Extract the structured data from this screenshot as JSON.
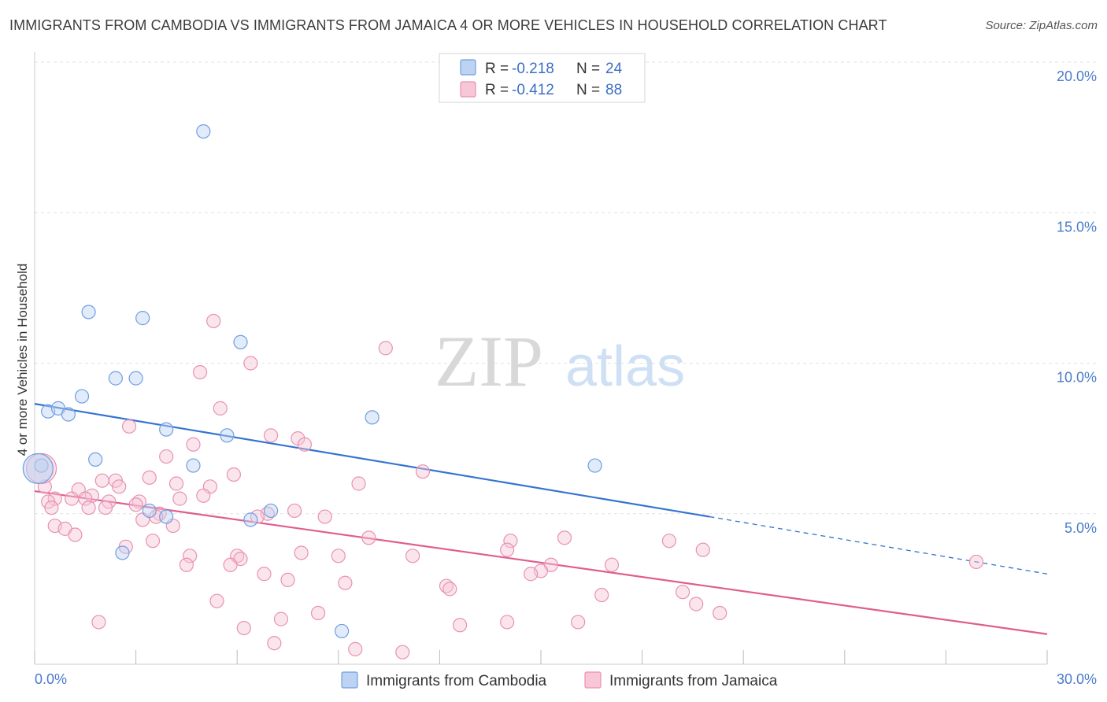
{
  "header": {
    "title": "IMMIGRANTS FROM CAMBODIA VS IMMIGRANTS FROM JAMAICA 4 OR MORE VEHICLES IN HOUSEHOLD CORRELATION CHART",
    "source": "Source: ZipAtlas.com"
  },
  "watermark": {
    "zip": "ZIP",
    "atlas": "atlas"
  },
  "legend": {
    "rows": [
      {
        "r_label": "R =",
        "r_value": "-0.218",
        "n_label": "N =",
        "n_value": "24"
      },
      {
        "r_label": "R =",
        "r_value": "-0.412",
        "n_label": "N =",
        "n_value": "88"
      }
    ]
  },
  "chart_data": {
    "type": "scatter",
    "title": "IMMIGRANTS FROM CAMBODIA VS IMMIGRANTS FROM JAMAICA 4 OR MORE VEHICLES IN HOUSEHOLD CORRELATION CHART",
    "xlabel": "",
    "ylabel": "4 or more Vehicles in Household",
    "xlim": [
      0,
      30
    ],
    "ylim": [
      0,
      20
    ],
    "x_tick_labels": [
      "0.0%",
      "30.0%"
    ],
    "y_ticks": [
      5,
      10,
      15,
      20
    ],
    "y_tick_labels": [
      "5.0%",
      "10.0%",
      "15.0%",
      "20.0%"
    ],
    "grid": true,
    "legend_position": "top-center",
    "series": [
      {
        "name": "Immigrants from Cambodia",
        "color": "#6f9fe0",
        "fill": "#bcd3f3",
        "trend_color": "#3373d1",
        "trend": {
          "x_start": 0,
          "y_start": 8.65,
          "x_solid_end": 20,
          "y_solid_end": 4.9,
          "x_end": 30,
          "y_end": 3.0
        },
        "points": [
          {
            "x": 5.0,
            "y": 17.7
          },
          {
            "x": 1.6,
            "y": 11.7
          },
          {
            "x": 3.2,
            "y": 11.5
          },
          {
            "x": 6.1,
            "y": 10.7
          },
          {
            "x": 2.4,
            "y": 9.5
          },
          {
            "x": 3.0,
            "y": 9.5
          },
          {
            "x": 1.4,
            "y": 8.9
          },
          {
            "x": 0.4,
            "y": 8.4
          },
          {
            "x": 0.7,
            "y": 8.5
          },
          {
            "x": 1.0,
            "y": 8.3
          },
          {
            "x": 10.0,
            "y": 8.2
          },
          {
            "x": 3.9,
            "y": 7.8
          },
          {
            "x": 5.7,
            "y": 7.6
          },
          {
            "x": 1.8,
            "y": 6.8
          },
          {
            "x": 4.7,
            "y": 6.6
          },
          {
            "x": 16.6,
            "y": 6.6
          },
          {
            "x": 0.2,
            "y": 6.6
          },
          {
            "x": 7.0,
            "y": 5.1
          },
          {
            "x": 3.4,
            "y": 5.1
          },
          {
            "x": 3.9,
            "y": 4.9
          },
          {
            "x": 6.4,
            "y": 4.8
          },
          {
            "x": 2.6,
            "y": 3.7
          },
          {
            "x": 9.1,
            "y": 1.1
          },
          {
            "x": 0.1,
            "y": 6.5
          }
        ]
      },
      {
        "name": "Immigrants from Jamaica",
        "color": "#e892b1",
        "fill": "#f7c6d7",
        "trend_color": "#e05d8e",
        "trend": {
          "x_start": 0,
          "y_start": 5.75,
          "x_end": 30,
          "y_end": 1.0
        },
        "points": [
          {
            "x": 5.3,
            "y": 11.4
          },
          {
            "x": 10.4,
            "y": 10.5
          },
          {
            "x": 6.4,
            "y": 10.0
          },
          {
            "x": 4.9,
            "y": 9.7
          },
          {
            "x": 5.5,
            "y": 8.5
          },
          {
            "x": 2.8,
            "y": 7.9
          },
          {
            "x": 7.0,
            "y": 7.6
          },
          {
            "x": 7.8,
            "y": 7.5
          },
          {
            "x": 8.0,
            "y": 7.3
          },
          {
            "x": 4.7,
            "y": 7.3
          },
          {
            "x": 3.9,
            "y": 6.9
          },
          {
            "x": 11.5,
            "y": 6.4
          },
          {
            "x": 5.9,
            "y": 6.3
          },
          {
            "x": 3.4,
            "y": 6.2
          },
          {
            "x": 2.4,
            "y": 6.1
          },
          {
            "x": 2.0,
            "y": 6.1
          },
          {
            "x": 4.2,
            "y": 6.0
          },
          {
            "x": 9.6,
            "y": 6.0
          },
          {
            "x": 2.5,
            "y": 5.9
          },
          {
            "x": 5.2,
            "y": 5.9
          },
          {
            "x": 0.3,
            "y": 5.9
          },
          {
            "x": 1.3,
            "y": 5.8
          },
          {
            "x": 1.7,
            "y": 5.6
          },
          {
            "x": 5.0,
            "y": 5.6
          },
          {
            "x": 0.6,
            "y": 5.5
          },
          {
            "x": 1.1,
            "y": 5.5
          },
          {
            "x": 1.5,
            "y": 5.5
          },
          {
            "x": 4.3,
            "y": 5.5
          },
          {
            "x": 0.4,
            "y": 5.4
          },
          {
            "x": 2.2,
            "y": 5.4
          },
          {
            "x": 3.1,
            "y": 5.4
          },
          {
            "x": 3.0,
            "y": 5.3
          },
          {
            "x": 1.6,
            "y": 5.2
          },
          {
            "x": 2.1,
            "y": 5.2
          },
          {
            "x": 0.5,
            "y": 5.2
          },
          {
            "x": 7.7,
            "y": 5.1
          },
          {
            "x": 6.9,
            "y": 5.0
          },
          {
            "x": 3.7,
            "y": 5.0
          },
          {
            "x": 3.6,
            "y": 4.9
          },
          {
            "x": 6.6,
            "y": 4.9
          },
          {
            "x": 8.6,
            "y": 4.9
          },
          {
            "x": 3.2,
            "y": 4.8
          },
          {
            "x": 4.1,
            "y": 4.6
          },
          {
            "x": 0.6,
            "y": 4.6
          },
          {
            "x": 0.9,
            "y": 4.5
          },
          {
            "x": 1.2,
            "y": 4.3
          },
          {
            "x": 9.9,
            "y": 4.2
          },
          {
            "x": 15.7,
            "y": 4.2
          },
          {
            "x": 3.5,
            "y": 4.1
          },
          {
            "x": 14.1,
            "y": 4.1
          },
          {
            "x": 18.8,
            "y": 4.1
          },
          {
            "x": 2.7,
            "y": 3.9
          },
          {
            "x": 14.0,
            "y": 3.8
          },
          {
            "x": 19.8,
            "y": 3.8
          },
          {
            "x": 7.9,
            "y": 3.7
          },
          {
            "x": 9.0,
            "y": 3.6
          },
          {
            "x": 11.2,
            "y": 3.6
          },
          {
            "x": 6.0,
            "y": 3.6
          },
          {
            "x": 4.6,
            "y": 3.6
          },
          {
            "x": 6.1,
            "y": 3.5
          },
          {
            "x": 4.5,
            "y": 3.3
          },
          {
            "x": 5.8,
            "y": 3.3
          },
          {
            "x": 15.3,
            "y": 3.3
          },
          {
            "x": 17.1,
            "y": 3.3
          },
          {
            "x": 27.9,
            "y": 3.4
          },
          {
            "x": 15.0,
            "y": 3.1
          },
          {
            "x": 14.7,
            "y": 3.0
          },
          {
            "x": 6.8,
            "y": 3.0
          },
          {
            "x": 7.5,
            "y": 2.8
          },
          {
            "x": 9.2,
            "y": 2.7
          },
          {
            "x": 12.2,
            "y": 2.6
          },
          {
            "x": 12.3,
            "y": 2.5
          },
          {
            "x": 19.2,
            "y": 2.4
          },
          {
            "x": 16.8,
            "y": 2.3
          },
          {
            "x": 5.4,
            "y": 2.1
          },
          {
            "x": 19.6,
            "y": 2.0
          },
          {
            "x": 8.4,
            "y": 1.7
          },
          {
            "x": 20.3,
            "y": 1.7
          },
          {
            "x": 7.3,
            "y": 1.5
          },
          {
            "x": 1.9,
            "y": 1.4
          },
          {
            "x": 14.0,
            "y": 1.4
          },
          {
            "x": 16.1,
            "y": 1.4
          },
          {
            "x": 12.6,
            "y": 1.3
          },
          {
            "x": 6.2,
            "y": 1.2
          },
          {
            "x": 7.1,
            "y": 0.7
          },
          {
            "x": 9.5,
            "y": 0.5
          },
          {
            "x": 10.9,
            "y": 0.4
          },
          {
            "x": 0.2,
            "y": 6.5
          }
        ]
      }
    ]
  }
}
